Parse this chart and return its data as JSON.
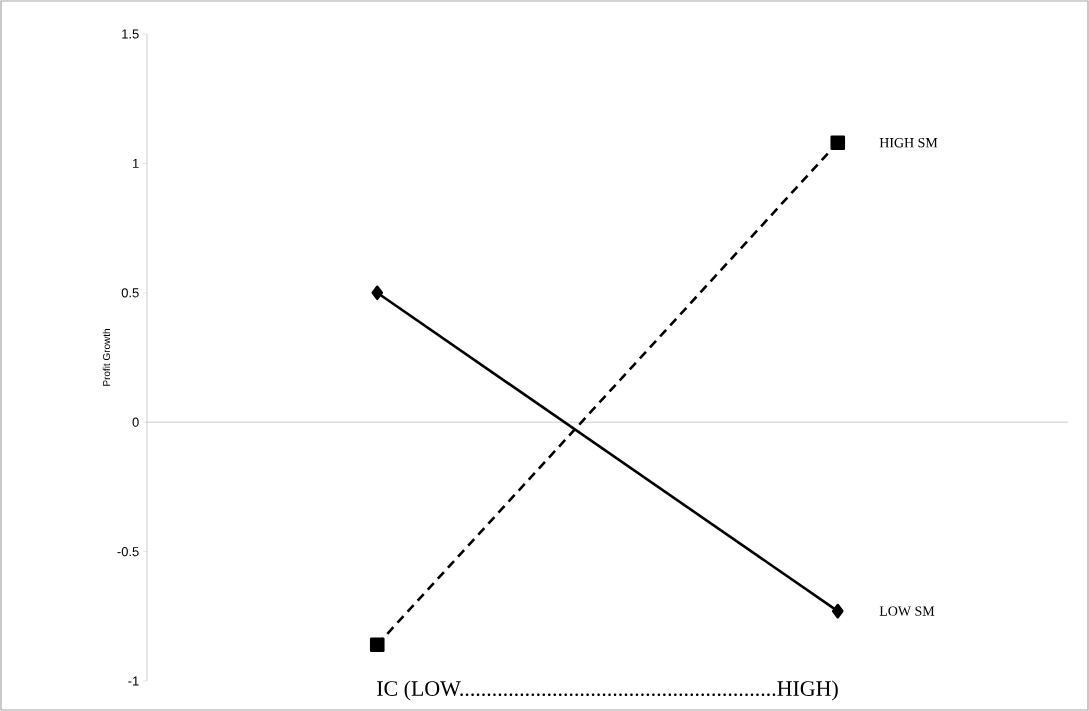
{
  "chart_data": {
    "type": "line",
    "xlabel": "IC (LOW..........................................................HIGH)",
    "ylabel": "Profit Growth",
    "categories": [
      null,
      null
    ],
    "series": [
      {
        "name": "HIGH SM",
        "color": "#000000",
        "values": [
          -0.86,
          1.08
        ],
        "marker": "square",
        "line_style": "dashed"
      },
      {
        "name": "LOW SM",
        "color": "#000000",
        "values": [
          0.5,
          -0.73
        ],
        "marker": "diamond",
        "line_style": "solid"
      }
    ],
    "ylim": [
      -1,
      1.5
    ],
    "yticks": [
      -1,
      -0.5,
      0,
      0.5,
      1,
      1.5
    ],
    "tick_labels": "y"
  }
}
